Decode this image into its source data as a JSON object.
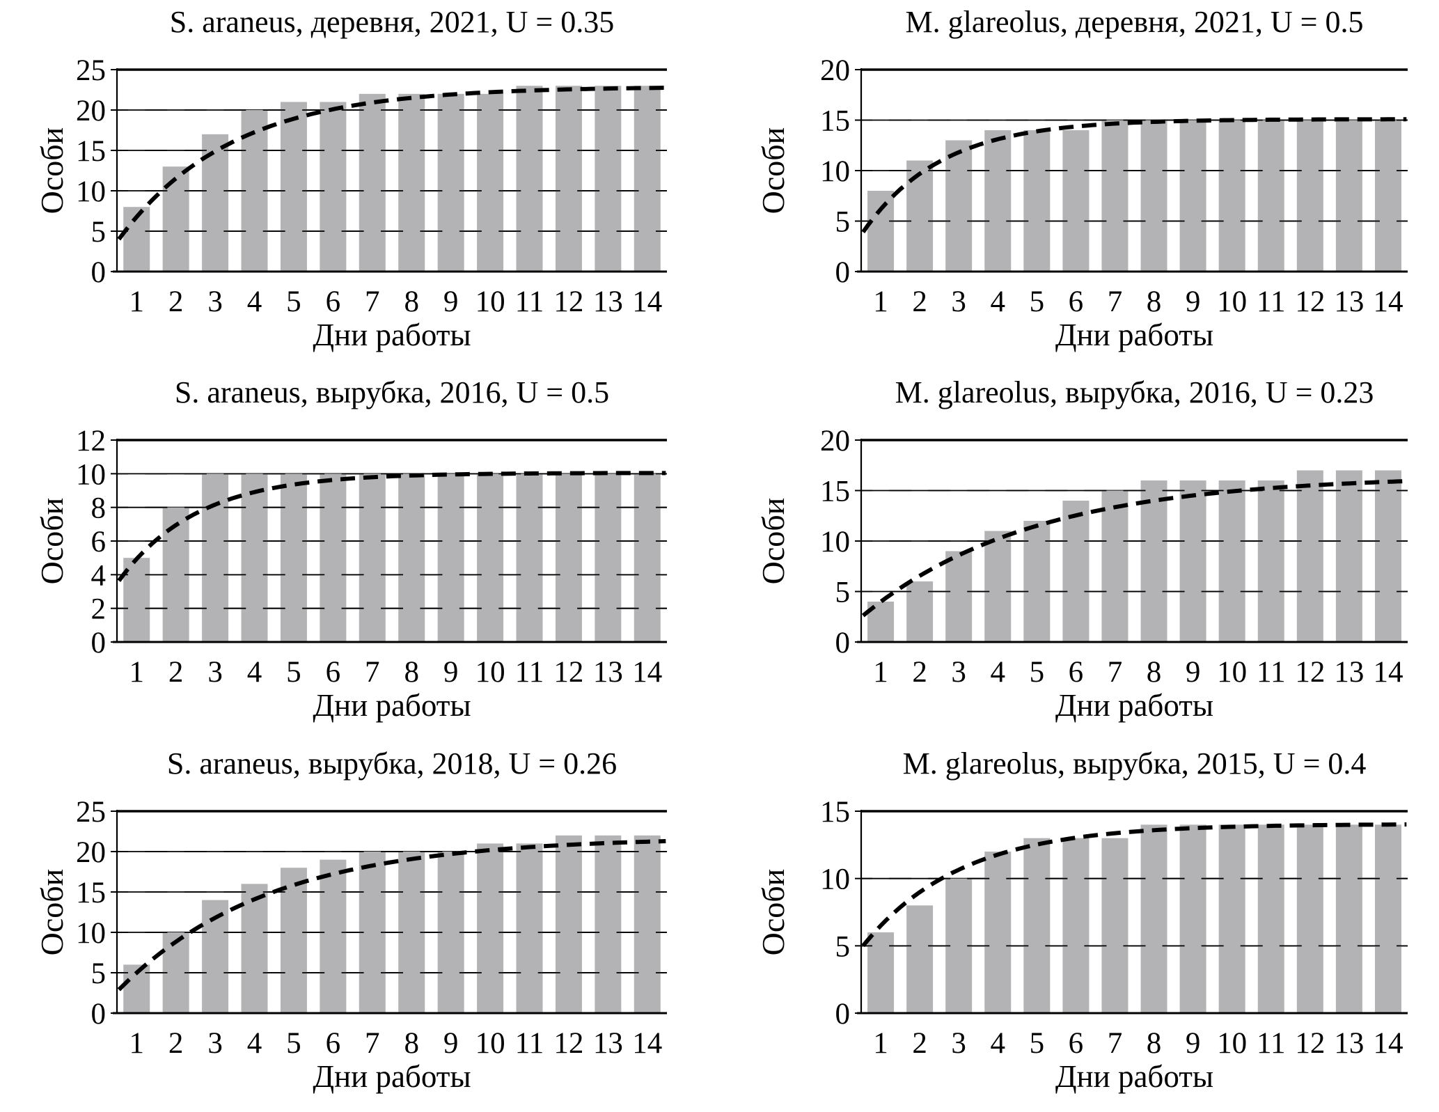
{
  "figure": {
    "description": "Six species accumulation bar charts with dashed saturation fit curves",
    "rows": 3,
    "cols": 2
  },
  "style": {
    "background": "#ffffff",
    "bar_fill": "#b3b3b5",
    "axis_color": "#000000",
    "text_color": "#000000",
    "curve_color": "#000000"
  },
  "chart_data": [
    {
      "type": "bar",
      "title": "S. araneus, деревня, 2021, U = 0.35",
      "species": "S. araneus",
      "habitat": "деревня",
      "year": 2021,
      "U": 0.35,
      "xlabel": "Дни работы",
      "ylabel": "Особи",
      "categories": [
        1,
        2,
        3,
        4,
        5,
        6,
        7,
        8,
        9,
        10,
        11,
        12,
        13,
        14
      ],
      "values": [
        8,
        13,
        17,
        20,
        21,
        21,
        22,
        22,
        22,
        22,
        23,
        23,
        23,
        23
      ],
      "ylim": [
        0,
        25
      ],
      "yticks": [
        0,
        5,
        10,
        15,
        20,
        25
      ],
      "grid": true,
      "legend": false,
      "fit_curve": {
        "style": "dashed",
        "asymptote": 22.9,
        "rate": 0.35,
        "x_offset": 0
      }
    },
    {
      "type": "bar",
      "title": "M. glareolus, деревня, 2021, U = 0.5",
      "species": "M. glareolus",
      "habitat": "деревня",
      "year": 2021,
      "U": 0.5,
      "xlabel": "Дни работы",
      "ylabel": "Особи",
      "categories": [
        1,
        2,
        3,
        4,
        5,
        6,
        7,
        8,
        9,
        10,
        11,
        12,
        13,
        14
      ],
      "values": [
        8,
        11,
        13,
        14,
        14,
        14,
        15,
        15,
        15,
        15,
        15,
        15,
        15,
        15
      ],
      "ylim": [
        0,
        20
      ],
      "yticks": [
        0,
        5,
        10,
        15,
        20
      ],
      "grid": true,
      "legend": false,
      "fit_curve": {
        "style": "dashed",
        "asymptote": 15.1,
        "rate": 0.5,
        "x_offset": 0.05
      }
    },
    {
      "type": "bar",
      "title": "S. araneus, вырубка, 2016, U = 0.5",
      "species": "S. araneus",
      "habitat": "вырубка",
      "year": 2016,
      "U": 0.5,
      "xlabel": "Дни работы",
      "ylabel": "Особи",
      "categories": [
        1,
        2,
        3,
        4,
        5,
        6,
        7,
        8,
        9,
        10,
        11,
        12,
        13,
        14
      ],
      "values": [
        5,
        8,
        10,
        10,
        10,
        10,
        10,
        10,
        10,
        10,
        10,
        10,
        10,
        10
      ],
      "ylim": [
        0,
        12
      ],
      "yticks": [
        0,
        2,
        4,
        6,
        8,
        10,
        12
      ],
      "grid": true,
      "legend": false,
      "fit_curve": {
        "style": "dashed",
        "asymptote": 10.05,
        "rate": 0.5,
        "x_offset": 0.35
      }
    },
    {
      "type": "bar",
      "title": "M. glareolus, вырубка, 2016, U = 0.23",
      "species": "M. glareolus",
      "habitat": "вырубка",
      "year": 2016,
      "U": 0.23,
      "xlabel": "Дни работы",
      "ylabel": "Особи",
      "categories": [
        1,
        2,
        3,
        4,
        5,
        6,
        7,
        8,
        9,
        10,
        11,
        12,
        13,
        14
      ],
      "values": [
        4,
        6,
        9,
        11,
        12,
        14,
        15,
        16,
        16,
        16,
        16,
        17,
        17,
        17
      ],
      "ylim": [
        0,
        20
      ],
      "yticks": [
        0,
        5,
        10,
        15,
        20
      ],
      "grid": true,
      "legend": false,
      "fit_curve": {
        "style": "dashed",
        "asymptote": 16.5,
        "rate": 0.23,
        "x_offset": 0.2
      }
    },
    {
      "type": "bar",
      "title": "S. araneus, вырубка, 2018, U = 0.26",
      "species": "S. araneus",
      "habitat": "вырубка",
      "year": 2018,
      "U": 0.26,
      "xlabel": "Дни работы",
      "ylabel": "Особи",
      "categories": [
        1,
        2,
        3,
        4,
        5,
        6,
        7,
        8,
        9,
        10,
        11,
        12,
        13,
        14
      ],
      "values": [
        6,
        10,
        14,
        16,
        18,
        19,
        20,
        20,
        20,
        21,
        21,
        22,
        22,
        22
      ],
      "ylim": [
        0,
        25
      ],
      "yticks": [
        0,
        5,
        10,
        15,
        20,
        25
      ],
      "grid": true,
      "legend": false,
      "fit_curve": {
        "style": "dashed",
        "asymptote": 21.8,
        "rate": 0.26,
        "x_offset": 0
      }
    },
    {
      "type": "bar",
      "title": "M. glareolus, вырубка, 2015, U = 0.4",
      "species": "M. glareolus",
      "habitat": "вырубка",
      "year": 2015,
      "U": 0.4,
      "xlabel": "Дни работы",
      "ylabel": "Особи",
      "categories": [
        1,
        2,
        3,
        4,
        5,
        6,
        7,
        8,
        9,
        10,
        11,
        12,
        13,
        14
      ],
      "values": [
        6,
        8,
        10,
        12,
        13,
        13,
        13,
        14,
        14,
        14,
        14,
        14,
        14,
        14
      ],
      "ylim": [
        0,
        15
      ],
      "yticks": [
        0,
        5,
        10,
        15
      ],
      "grid": true,
      "legend": false,
      "fit_curve": {
        "style": "dashed",
        "asymptote": 14.05,
        "rate": 0.4,
        "x_offset": 0.55
      }
    }
  ]
}
